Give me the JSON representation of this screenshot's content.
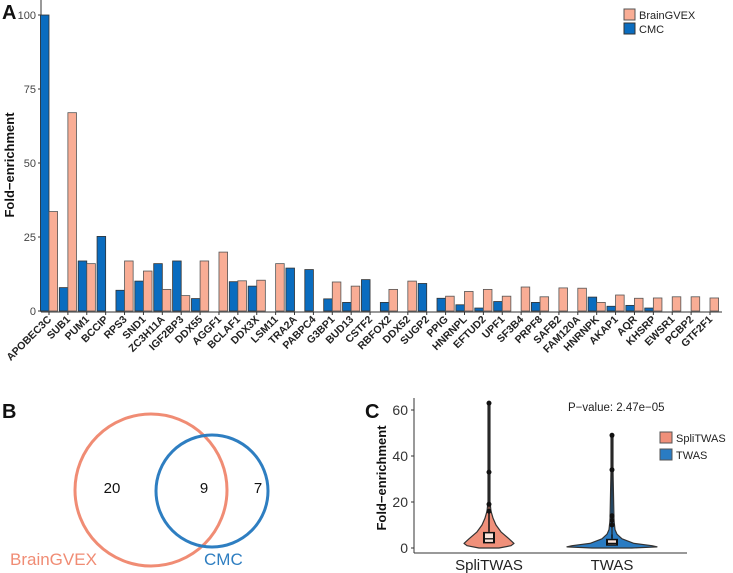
{
  "colors": {
    "braingvex": "#F9AD95",
    "cmc": "#0A6CBF",
    "venn_braingvex": "#F08C74",
    "venn_cmc": "#2E7EC1",
    "splitwas": "#F0907A",
    "twas": "#2A7CC3"
  },
  "panels": {
    "a": "A",
    "b": "B",
    "c": "C"
  },
  "chart_data": [
    {
      "type": "bar",
      "title": "",
      "xlabel": "",
      "ylabel": "Fold−enrichment",
      "ylim": [
        0,
        100
      ],
      "yticks": [
        "0",
        "25",
        "50",
        "75",
        "100"
      ],
      "legend": {
        "placement": "top-right",
        "entries": [
          "BrainGVEX",
          "CMC"
        ]
      },
      "categories": [
        "APOBEC3C",
        "SUB1",
        "PUM1",
        "BCCIP",
        "RPS3",
        "SND1",
        "ZC3H11A",
        "IGF2BP3",
        "DDX55",
        "AGGF1",
        "BCLAF1",
        "DDX3X",
        "LSM11",
        "TRA2A",
        "PABPC4",
        "G3BP1",
        "BUD13",
        "CSTF2",
        "RBFOX2",
        "DDX52",
        "SUGP2",
        "PPIG",
        "HNRNPL",
        "EFTUD2",
        "UPF1",
        "SF3B4",
        "PRPF8",
        "SAFB2",
        "FAM120A",
        "HNRNPK",
        "AKAP1",
        "AQR",
        "KHSRP",
        "EWSR1",
        "PCBP2",
        "GTF2F1"
      ],
      "series": [
        {
          "name": "CMC",
          "values": [
            100,
            7.9,
            16.9,
            25.2,
            7.0,
            10.1,
            16.0,
            16.9,
            4.2,
            0,
            9.9,
            8.4,
            0,
            14.5,
            14.0,
            4.1,
            2.9,
            10.6,
            2.9,
            0,
            9.3,
            4.3,
            2.1,
            1.0,
            3.2,
            0,
            2.9,
            0,
            0,
            4.7,
            1.6,
            1.9,
            1.0,
            0,
            0,
            0
          ]
        },
        {
          "name": "BrainGVEX",
          "values": [
            33.6,
            67,
            16.0,
            0,
            16.9,
            13.5,
            7.3,
            5.2,
            16.9,
            19.9,
            10.2,
            10.4,
            16.0,
            0,
            0,
            9.8,
            8.4,
            0,
            7.3,
            10.1,
            0,
            5.0,
            6.6,
            7.3,
            5.0,
            8.1,
            4.8,
            7.8,
            7.7,
            2.9,
            5.4,
            4.3,
            4.4,
            4.8,
            4.8,
            4.4
          ]
        }
      ]
    },
    {
      "type": "venn",
      "sets": [
        "BrainGVEX",
        "CMC"
      ],
      "counts": {
        "braingvex_only": "20",
        "both": "9",
        "cmc_only": "7"
      }
    },
    {
      "type": "violin",
      "ylabel": "Fold−enrichment",
      "ylim": [
        0,
        65
      ],
      "yticks": [
        "0",
        "20",
        "40",
        "60"
      ],
      "categories": [
        "SpliTWAS",
        "TWAS"
      ],
      "legend": {
        "placement": "right",
        "entries": [
          "SpliTWAS",
          "TWAS"
        ]
      },
      "annotation": "P−value: 2.47e−05",
      "groups": [
        {
          "name": "SpliTWAS",
          "q1": 2,
          "median": 4,
          "q3": 7,
          "whisker_high": 16,
          "outliers": [
            63,
            33,
            19,
            16
          ]
        },
        {
          "name": "TWAS",
          "q1": 1,
          "median": 2,
          "q3": 4,
          "whisker_high": 6,
          "outliers": [
            49,
            34,
            14,
            12,
            10
          ]
        }
      ]
    }
  ]
}
